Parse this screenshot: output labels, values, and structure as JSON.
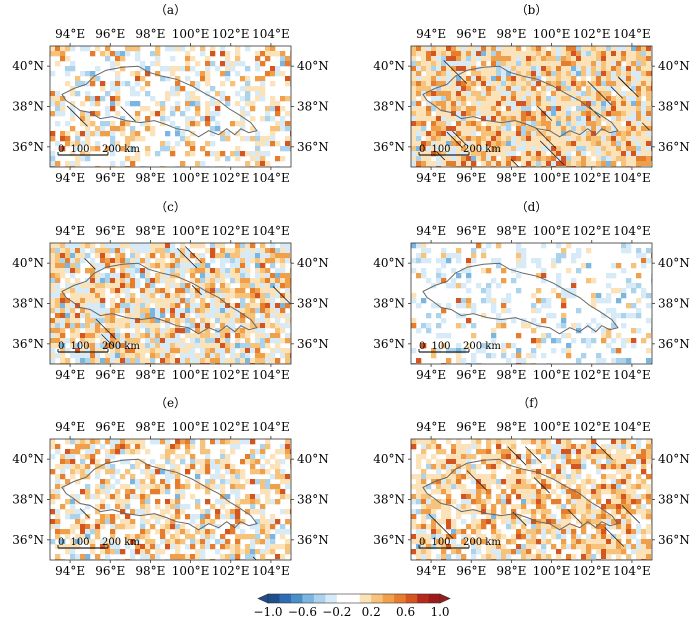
{
  "panels": [
    {
      "label": "（a）",
      "key": "a"
    },
    {
      "label": "（b）",
      "key": "b"
    },
    {
      "label": "（c）",
      "key": "c"
    },
    {
      "label": "（d）",
      "key": "d"
    },
    {
      "label": "（e）",
      "key": "e"
    },
    {
      "label": "（f）",
      "key": "f"
    }
  ],
  "lon_ticks": [
    "94°E",
    "96°E",
    "98°E",
    "100°E",
    "102°E",
    "104°E"
  ],
  "lat_ticks": [
    "40°N",
    "38°N",
    "36°N"
  ],
  "scalebar": {
    "labels": [
      "0",
      "100",
      "200 km"
    ]
  },
  "colorbar": {
    "ticks": [
      "−1.0",
      "−0.6",
      "−0.2",
      "0.2",
      "0.6",
      "1.0"
    ],
    "colors": [
      "#1f4e8c",
      "#2e6db4",
      "#4a90c8",
      "#7ab6df",
      "#acd3ec",
      "#d6ebf7",
      "#ffffff",
      "#ffffff",
      "#fce2b8",
      "#f7c27a",
      "#f0a04a",
      "#e67d2c",
      "#d4551f",
      "#b52a1d",
      "#9e1a1a"
    ]
  },
  "map_colors": {
    "outline": "#666666",
    "hatch": "#222222"
  }
}
